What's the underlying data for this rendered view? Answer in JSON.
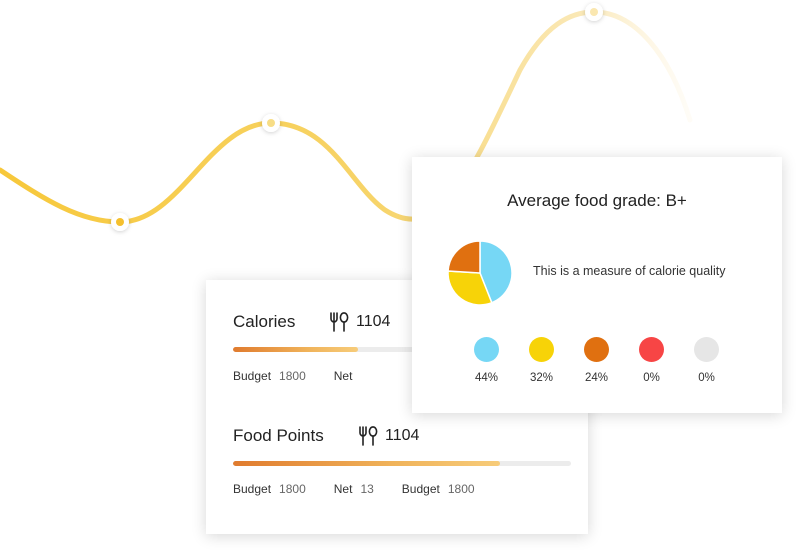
{
  "calories": {
    "title": "Calories",
    "count": "1104",
    "progress": 0.37,
    "budget_label": "Budget",
    "budget_value": "1800",
    "net_label": "Net"
  },
  "food_points": {
    "title": "Food Points",
    "count": "1104",
    "progress": 0.79,
    "budget_label": "Budget",
    "budget_value": "1800",
    "net_label": "Net",
    "net_value": "13",
    "budget2_label": "Budget",
    "budget2_value": "1800"
  },
  "grade": {
    "title": "Average food grade: B+",
    "description": "This is a measure of calorie quality",
    "legend": [
      {
        "pct": "44%",
        "color": "#76d7f5"
      },
      {
        "pct": "32%",
        "color": "#f7d308"
      },
      {
        "pct": "24%",
        "color": "#e07010"
      },
      {
        "pct": "0%",
        "color": "#f74545"
      },
      {
        "pct": "0%",
        "color": "#e6e6e6"
      }
    ]
  },
  "chart_data": {
    "type": "pie",
    "categories": [
      "",
      "",
      "",
      "",
      ""
    ],
    "values": [
      44,
      32,
      24,
      0,
      0
    ],
    "colors": [
      "#76d7f5",
      "#f7d308",
      "#e07010",
      "#f74545",
      "#e6e6e6"
    ]
  },
  "colors": {
    "wave": "#f7cc4a",
    "wave_dot": "#f5c02e",
    "bar_start": "#e07b2e",
    "bar_end": "#f7cc7a"
  }
}
